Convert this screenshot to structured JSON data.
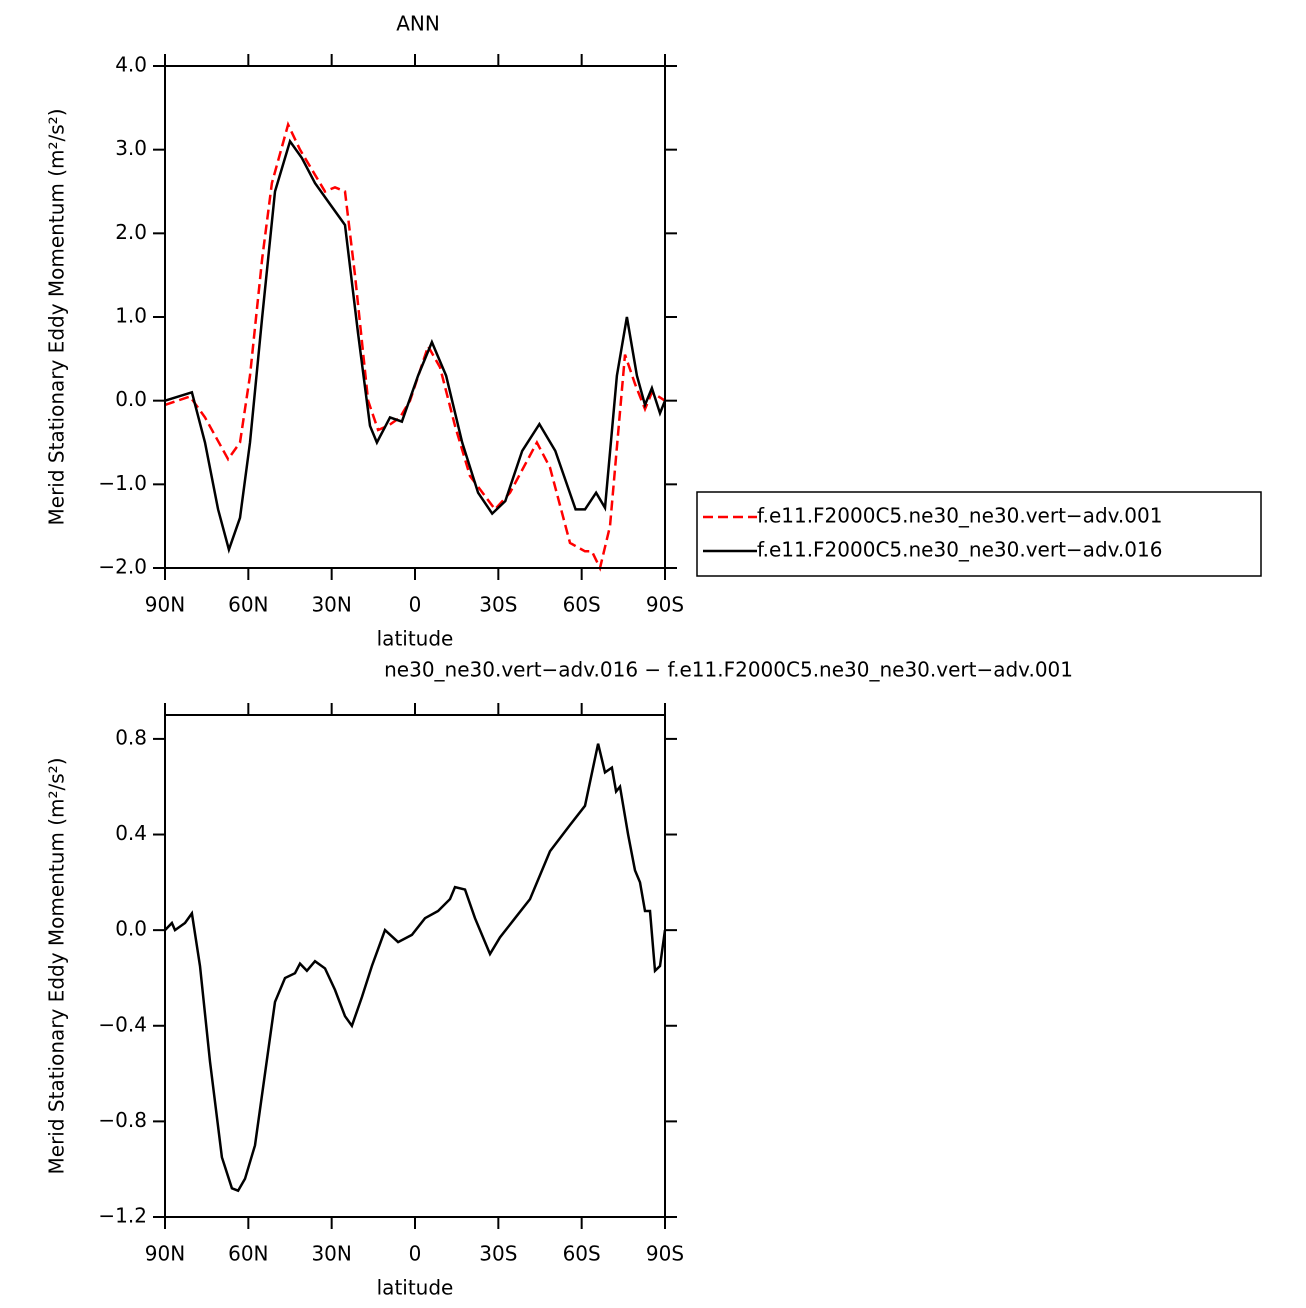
{
  "chart_data": [
    {
      "type": "line",
      "title": "ANN",
      "xlabel": "latitude",
      "ylabel": "Merid Stationary Eddy Momentum (m²/s²)",
      "xlim": [
        90,
        -90
      ],
      "xticks": [
        {
          "value": 90,
          "label": "90N"
        },
        {
          "value": 60,
          "label": "60N"
        },
        {
          "value": 30,
          "label": "30N"
        },
        0,
        {
          "value": -30,
          "label": "30S"
        },
        {
          "value": -60,
          "label": "60S"
        },
        {
          "value": -90,
          "label": "90S"
        }
      ],
      "ylim": [
        -2,
        4
      ],
      "yticks": [
        {
          "value": -2,
          "label": "−2.0"
        },
        {
          "value": -1,
          "label": "−1.0"
        },
        {
          "value": 0,
          "label": "0.0"
        },
        {
          "value": 1,
          "label": "1.0"
        },
        {
          "value": 2,
          "label": "2.0"
        },
        {
          "value": 3,
          "label": "3.0"
        },
        {
          "value": 4,
          "label": "4.0"
        }
      ],
      "legend": "right",
      "series": [
        {
          "name": "f.e11.F2000C5.ne30_ne30.vert−adv.001",
          "color": "#ff0000",
          "dash": "dashed",
          "x": [
            90,
            81,
            75.6,
            67.3,
            63,
            59.4,
            55,
            51.5,
            45.7,
            41.4,
            36,
            32.4,
            28.8,
            25.2,
            21.6,
            16.9,
            13.3,
            9.7,
            5.4,
            1.8,
            -4.7,
            -9,
            -14.4,
            -19.8,
            -28.8,
            -34.2,
            -43.9,
            -48.6,
            -55.8,
            -61.2,
            -63.7,
            -66.6,
            -70.2,
            -75.6,
            -79.2,
            -82.8,
            -85.3,
            -90
          ],
          "values": [
            -0.05,
            0.05,
            -0.2,
            -0.7,
            -0.5,
            0.3,
            1.7,
            2.6,
            3.3,
            3.0,
            2.7,
            2.5,
            2.55,
            2.5,
            1.5,
            0.0,
            -0.35,
            -0.3,
            -0.2,
            0.0,
            0.65,
            0.4,
            -0.3,
            -0.9,
            -1.3,
            -1.1,
            -0.5,
            -0.8,
            -1.7,
            -1.8,
            -1.8,
            -2.0,
            -1.5,
            0.55,
            0.2,
            -0.1,
            0.1,
            0.0
          ]
        },
        {
          "name": "f.e11.F2000C5.ne30_ne30.vert−adv.016",
          "color": "#000000",
          "dash": "solid",
          "x": [
            90,
            80.3,
            75.6,
            70.9,
            67,
            63,
            59.4,
            55,
            50.4,
            45,
            40.7,
            36,
            30.6,
            25.2,
            20.5,
            16.2,
            13.7,
            9,
            4.7,
            -1.1,
            -6.1,
            -11.2,
            -17,
            -22.7,
            -27.8,
            -32.5,
            -38.6,
            -44.8,
            -50.5,
            -57.8,
            -61.2,
            -65.2,
            -68.4,
            -72.7,
            -76.3,
            -79.9,
            -82.8,
            -85.3,
            -88.2,
            -90
          ],
          "values": [
            0.0,
            0.1,
            -0.5,
            -1.3,
            -1.78,
            -1.4,
            -0.5,
            1.0,
            2.5,
            3.1,
            2.9,
            2.6,
            2.35,
            2.1,
            0.8,
            -0.3,
            -0.5,
            -0.2,
            -0.25,
            0.3,
            0.7,
            0.3,
            -0.5,
            -1.1,
            -1.35,
            -1.2,
            -0.6,
            -0.28,
            -0.6,
            -1.3,
            -1.3,
            -1.1,
            -1.28,
            0.3,
            1.0,
            0.3,
            -0.05,
            0.15,
            -0.15,
            0.0
          ]
        }
      ]
    },
    {
      "type": "line",
      "title": "ne30_ne30.vert−adv.016 − f.e11.F2000C5.ne30_ne30.vert−adv.001",
      "xlabel": "latitude",
      "ylabel": "Merid Stationary Eddy Momentum (m²/s²)",
      "xlim": [
        90,
        -90
      ],
      "xticks": [
        {
          "value": 90,
          "label": "90N"
        },
        {
          "value": 60,
          "label": "60N"
        },
        {
          "value": 30,
          "label": "30N"
        },
        0,
        {
          "value": -30,
          "label": "30S"
        },
        {
          "value": -60,
          "label": "60S"
        },
        {
          "value": -90,
          "label": "90S"
        }
      ],
      "ylim": [
        -1.2,
        0.9
      ],
      "yticks": [
        {
          "value": -1.2,
          "label": "−1.2"
        },
        {
          "value": -0.8,
          "label": "−0.8"
        },
        {
          "value": -0.4,
          "label": "−0.4"
        },
        {
          "value": 0,
          "label": "0.0"
        },
        0.4,
        0.8
      ],
      "series": [
        {
          "color": "#000000",
          "dash": "solid",
          "x": [
            90,
            87.5,
            86.4,
            82.8,
            80.3,
            77.4,
            73.8,
            69.5,
            65.9,
            63.7,
            61.2,
            57.6,
            54,
            50.4,
            46.8,
            43.2,
            41.4,
            38.9,
            36,
            32.4,
            28.8,
            25.2,
            22.7,
            19.1,
            15.5,
            10.8,
            6.1,
            1.1,
            -3.6,
            -8.3,
            -12.6,
            -14.4,
            -18,
            -21.6,
            -27,
            -30.6,
            -36,
            -41.4,
            -48.6,
            -55.8,
            -61.2,
            -65.9,
            -68.4,
            -70.9,
            -72.4,
            -73.8,
            -76.7,
            -79.2,
            -81,
            -82.8,
            -84.6,
            -86.4,
            -88.2,
            -90
          ],
          "values": [
            0.0,
            0.03,
            0.0,
            0.03,
            0.07,
            -0.15,
            -0.55,
            -0.95,
            -1.08,
            -1.09,
            -1.04,
            -0.9,
            -0.6,
            -0.3,
            -0.2,
            -0.18,
            -0.14,
            -0.17,
            -0.13,
            -0.16,
            -0.25,
            -0.36,
            -0.4,
            -0.28,
            -0.15,
            0.0,
            -0.05,
            -0.02,
            0.05,
            0.08,
            0.13,
            0.18,
            0.17,
            0.05,
            -0.1,
            -0.03,
            0.05,
            0.13,
            0.33,
            0.44,
            0.52,
            0.78,
            0.66,
            0.68,
            0.58,
            0.6,
            0.4,
            0.25,
            0.2,
            0.08,
            0.08,
            -0.17,
            -0.15,
            0.0
          ]
        }
      ]
    }
  ]
}
